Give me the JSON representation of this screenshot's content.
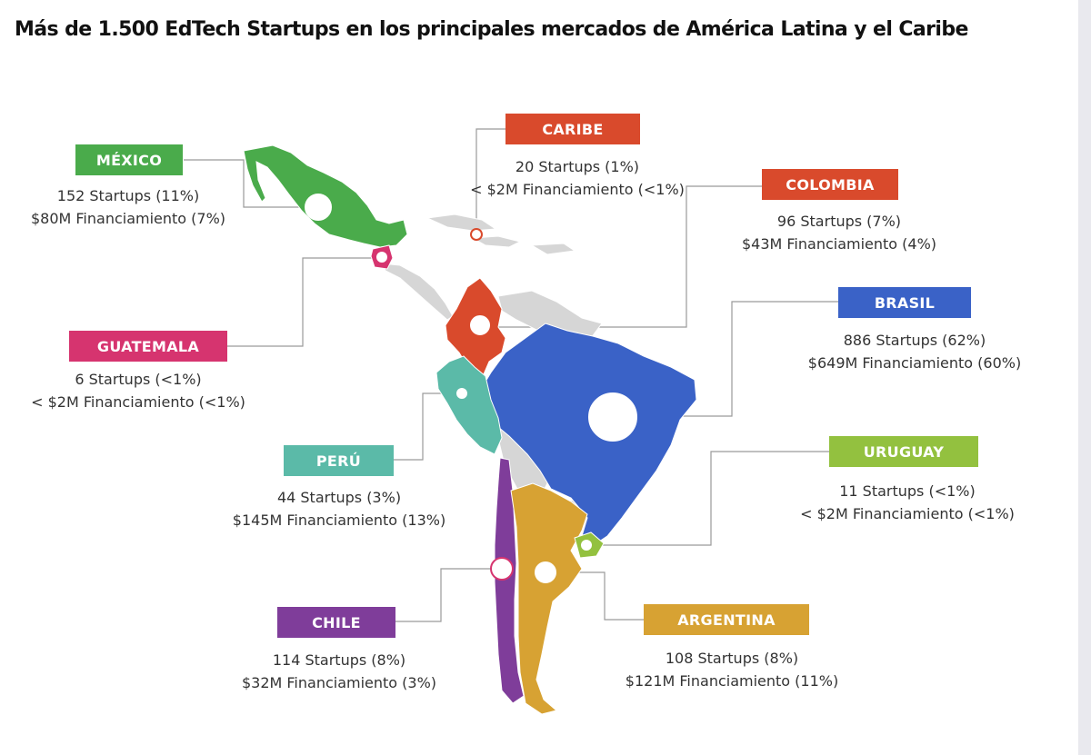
{
  "title": "Más de 1.500 EdTech Startups en los principales mercados de América Latina y el Caribe",
  "colors": {
    "mexico": "#4aab4b",
    "caribe": "#d94a2c",
    "colombia": "#d94a2c",
    "guatemala": "#d6346f",
    "peru": "#5bbaa8",
    "brasil": "#3a62c7",
    "uruguay": "#93c13f",
    "chile": "#7f3d9a",
    "argentina": "#d7a233",
    "land_other": "#d6d6d6"
  },
  "countries": {
    "mexico": {
      "name": "MÉXICO",
      "startups": "152 Startups (11%)",
      "funding": "$80M Financiamiento (7%)"
    },
    "caribe": {
      "name": "CARIBE",
      "startups": "20 Startups (1%)",
      "funding": "< $2M Financiamiento (<1%)"
    },
    "colombia": {
      "name": "COLOMBIA",
      "startups": "96 Startups (7%)",
      "funding": "$43M Financiamiento (4%)"
    },
    "brasil": {
      "name": "BRASIL",
      "startups": "886 Startups (62%)",
      "funding": "$649M Financiamiento (60%)"
    },
    "guatemala": {
      "name": "GUATEMALA",
      "startups": "6 Startups (<1%)",
      "funding": "< $2M Financiamiento (<1%)"
    },
    "peru": {
      "name": "PERÚ",
      "startups": "44 Startups (3%)",
      "funding": "$145M Financiamiento (13%)"
    },
    "uruguay": {
      "name": "URUGUAY",
      "startups": "11 Startups (<1%)",
      "funding": "< $2M Financiamiento (<1%)"
    },
    "chile": {
      "name": "CHILE",
      "startups": "114 Startups (8%)",
      "funding": "$32M Financiamiento (3%)"
    },
    "argentina": {
      "name": "ARGENTINA",
      "startups": "108 Startups (8%)",
      "funding": "$121M Financiamiento (11%)"
    }
  }
}
